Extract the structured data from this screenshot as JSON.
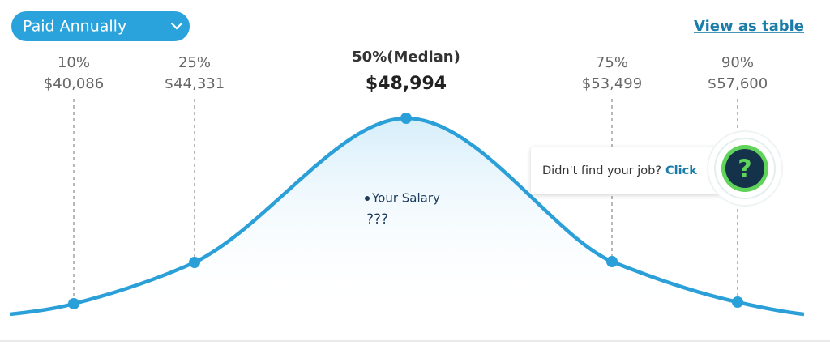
{
  "controls": {
    "pay_period": "Paid Annually",
    "view_link": "View as table"
  },
  "percentiles": [
    {
      "label": "10%",
      "value": "$40,086"
    },
    {
      "label": "25%",
      "value": "$44,331"
    },
    {
      "label": "50%(Median)",
      "value": "$48,994"
    },
    {
      "label": "75%",
      "value": "$53,499"
    },
    {
      "label": "90%",
      "value": "$57,600"
    }
  ],
  "your_salary": {
    "label": "Your Salary",
    "value": "???"
  },
  "help": {
    "text": "Didn't find your job?",
    "link": "Click",
    "icon": "?"
  }
}
